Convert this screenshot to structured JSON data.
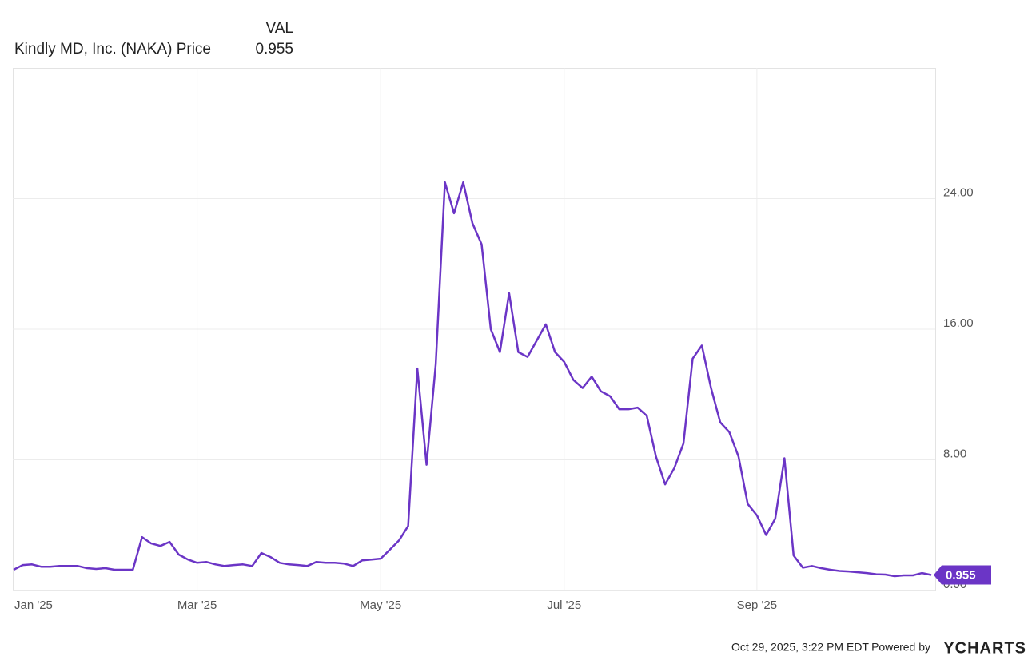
{
  "chart_data": {
    "type": "line",
    "legend_header": "VAL",
    "categories": [
      "Jan '25",
      null,
      null,
      null,
      null,
      null,
      null,
      null,
      null,
      null,
      null,
      null,
      null,
      null,
      null,
      null,
      null,
      null,
      null,
      null,
      "Mar '25",
      null,
      null,
      null,
      null,
      null,
      null,
      null,
      null,
      null,
      null,
      null,
      null,
      null,
      null,
      null,
      null,
      null,
      null,
      null,
      "May '25",
      null,
      null,
      null,
      null,
      null,
      null,
      null,
      null,
      null,
      null,
      null,
      null,
      null,
      null,
      null,
      null,
      null,
      null,
      null,
      "Jul '25",
      null,
      null,
      null,
      null,
      null,
      null,
      null,
      null,
      null,
      null,
      null,
      null,
      null,
      null,
      null,
      null,
      null,
      null,
      null,
      null,
      "Sep '25",
      null,
      null,
      null,
      null,
      null,
      null,
      null,
      null,
      null,
      null,
      null,
      null,
      null,
      null,
      null,
      null,
      null,
      null,
      null
    ],
    "series": [
      {
        "name": "Kindly MD, Inc. (NAKA) Price",
        "color": "#6b35c6",
        "values": [
          1.27,
          1.56,
          1.6,
          1.46,
          1.46,
          1.5,
          1.5,
          1.5,
          1.37,
          1.32,
          1.37,
          1.27,
          1.27,
          1.27,
          3.27,
          2.88,
          2.73,
          2.98,
          2.2,
          1.9,
          1.7,
          1.75,
          1.6,
          1.5,
          1.56,
          1.6,
          1.5,
          2.3,
          2.05,
          1.7,
          1.6,
          1.56,
          1.5,
          1.75,
          1.7,
          1.7,
          1.65,
          1.5,
          1.85,
          1.9,
          1.95,
          2.5,
          3.07,
          3.95,
          13.6,
          7.7,
          13.85,
          25.0,
          23.1,
          25.0,
          22.5,
          21.2,
          16.0,
          14.6,
          18.2,
          14.6,
          14.3,
          15.3,
          16.3,
          14.6,
          14.0,
          12.9,
          12.4,
          13.1,
          12.2,
          11.9,
          11.1,
          11.1,
          11.2,
          10.7,
          8.2,
          6.5,
          7.5,
          9.0,
          14.2,
          15.0,
          12.4,
          10.3,
          9.7,
          8.2,
          5.3,
          4.6,
          3.4,
          4.4,
          8.1,
          2.15,
          1.4,
          1.5,
          1.37,
          1.27,
          1.2,
          1.17,
          1.12,
          1.07,
          1.0,
          0.98,
          0.88,
          0.93,
          0.93,
          1.07,
          0.955
        ]
      }
    ],
    "ylim": [
      0,
      32
    ],
    "yticks": [
      {
        "value": 0,
        "label": "0.00"
      },
      {
        "value": 8,
        "label": "8.00"
      },
      {
        "value": 16,
        "label": "16.00"
      },
      {
        "value": 24,
        "label": "24.00"
      }
    ],
    "grid": true
  },
  "footer": {
    "timestamp": "Oct 29, 2025, 3:22 PM EDT",
    "powered_by": "Powered by",
    "brand": "YCHARTS"
  }
}
